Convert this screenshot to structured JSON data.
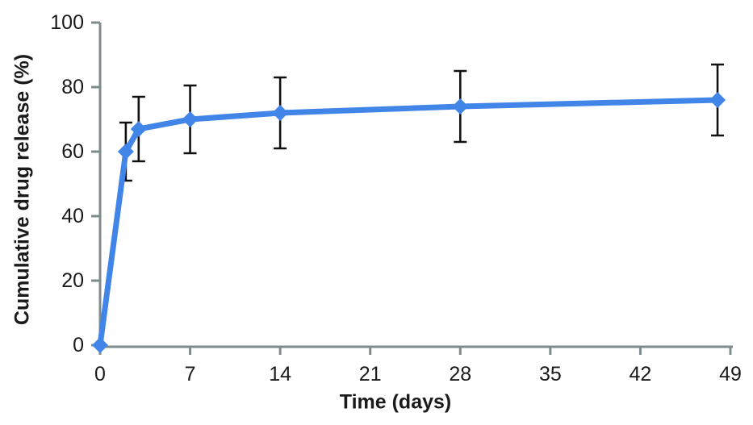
{
  "chart_data": {
    "type": "line",
    "title": "",
    "xlabel": "Time (days)",
    "ylabel": "Cumulative drug release (%)",
    "series": [
      {
        "name": "cumulative-drug-release",
        "x": [
          0,
          2,
          3,
          7,
          14,
          28,
          48
        ],
        "y": [
          0,
          60,
          67,
          70,
          72,
          74,
          76
        ],
        "yerr": [
          0,
          9,
          10,
          10.5,
          11,
          11,
          11
        ],
        "marker": "diamond",
        "color": "#4285e8"
      }
    ],
    "xticks": [
      0,
      7,
      14,
      21,
      28,
      35,
      42,
      49
    ],
    "yticks": [
      0,
      20,
      40,
      60,
      80,
      100
    ],
    "xlim": [
      0,
      49
    ],
    "ylim": [
      0,
      100
    ],
    "grid": false,
    "legend": "none",
    "colors": {
      "axis": "#7f8c8d",
      "error_bar": "#111111",
      "tick_text": "#1a1a1a"
    }
  }
}
